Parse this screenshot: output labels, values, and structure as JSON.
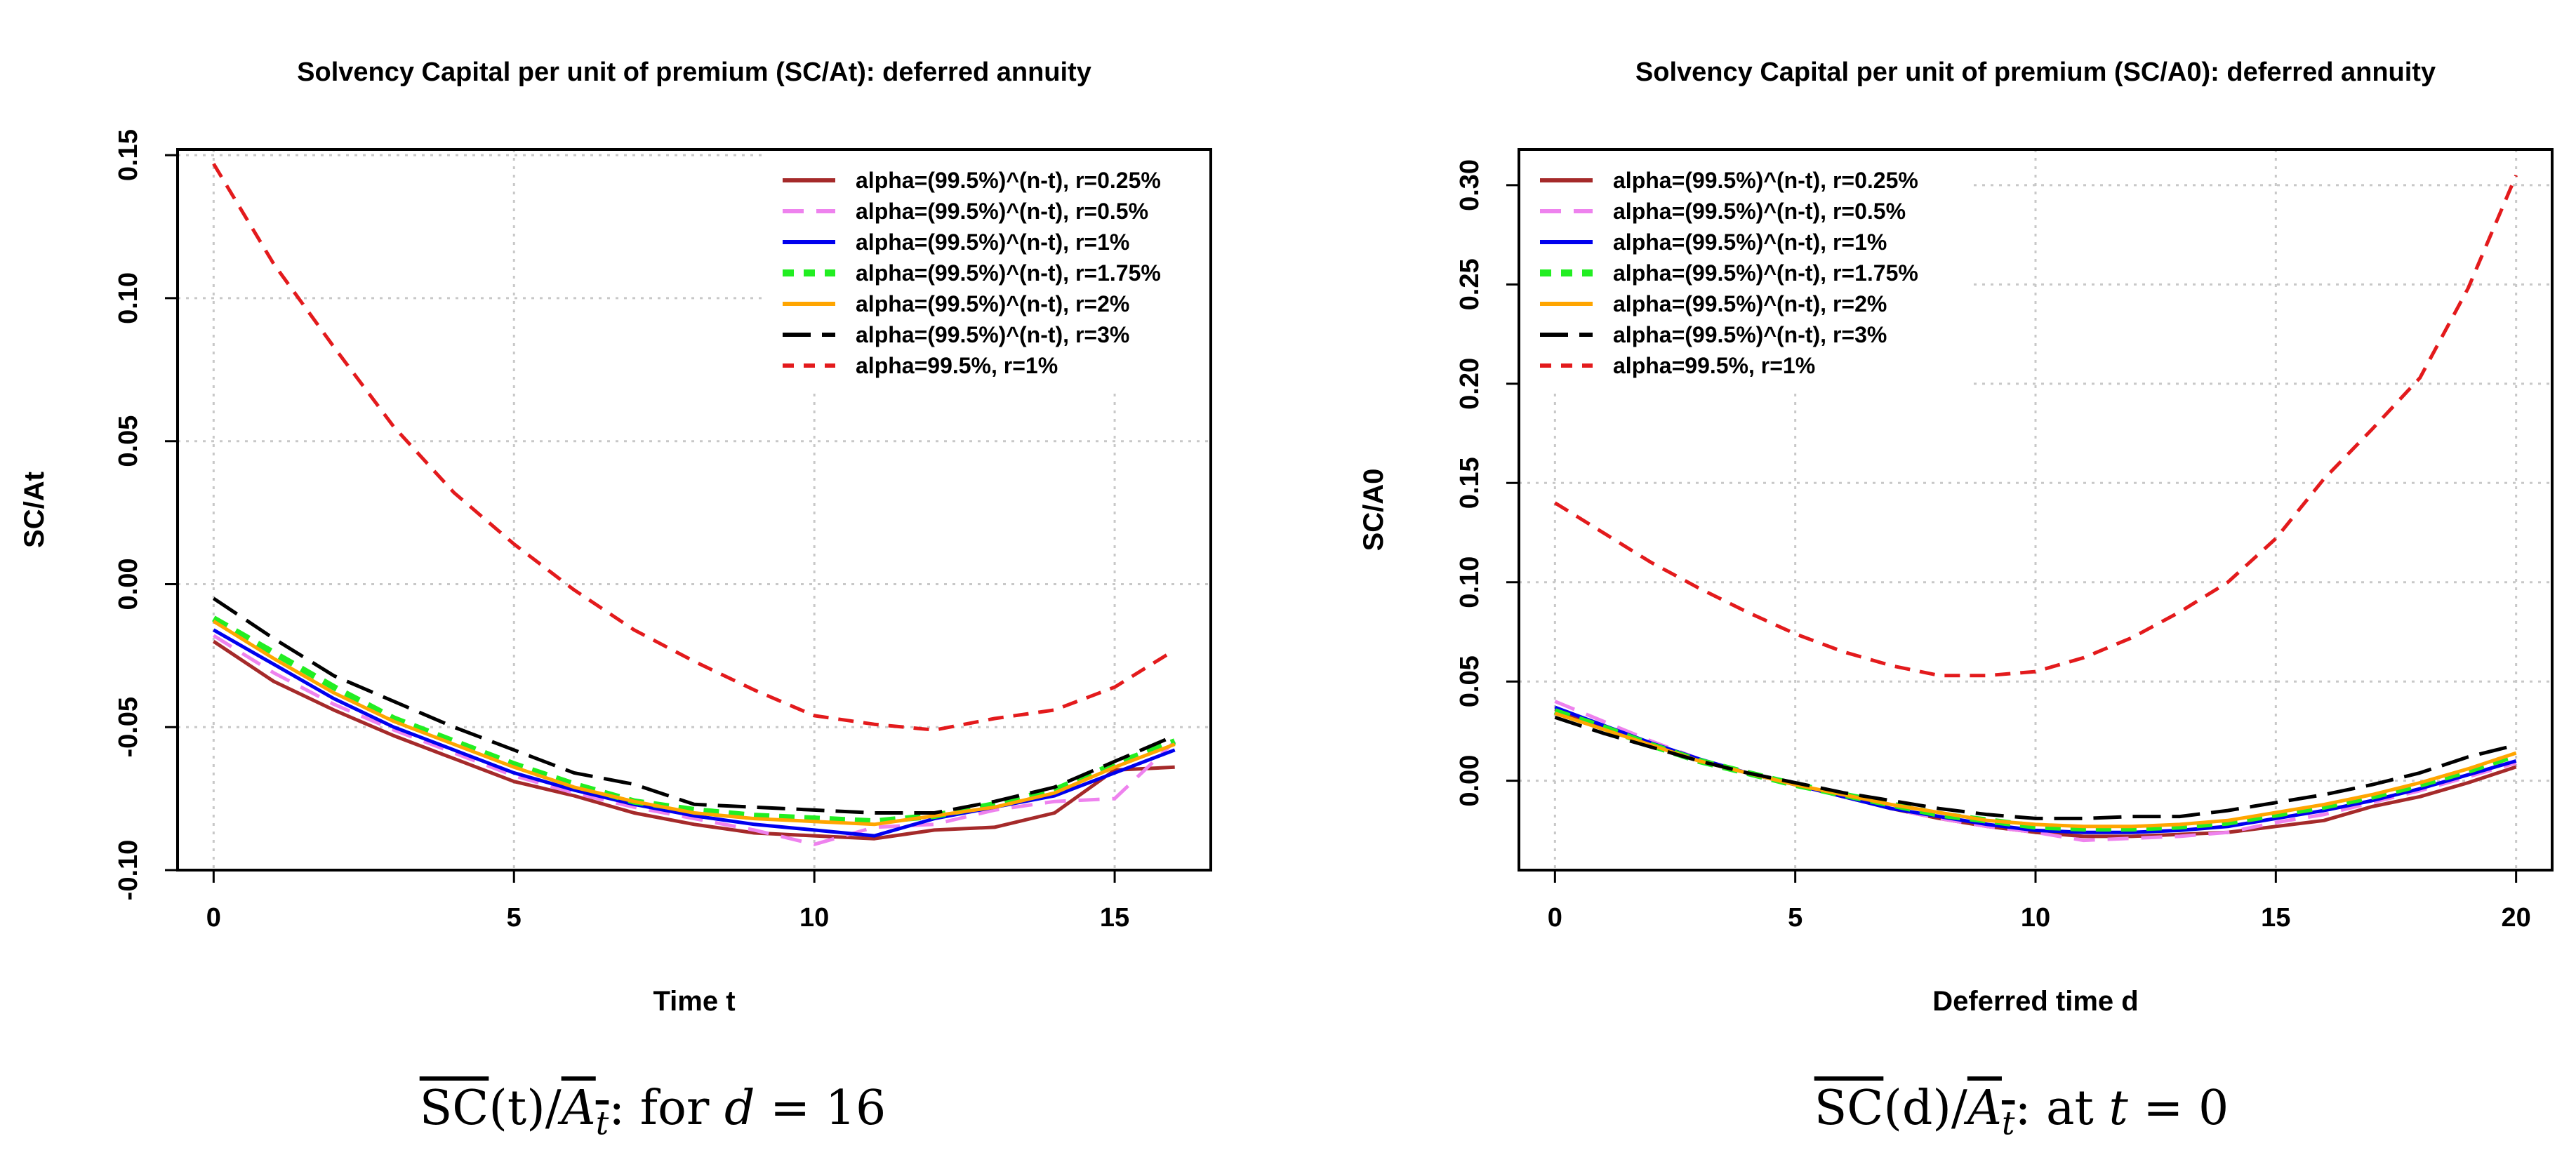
{
  "chart_data": [
    {
      "type": "line",
      "title": "Solvency Capital per unit of premium (SC/At): deferred annuity",
      "xlabel": "Time t",
      "ylabel": "SC/At",
      "xlim": [
        -0.6,
        16.6
      ],
      "ylim": [
        -0.1,
        0.152
      ],
      "xticks": [
        0,
        5,
        10,
        15
      ],
      "xtick_labels": [
        "0",
        "5",
        "10",
        "15"
      ],
      "yticks": [
        -0.1,
        -0.05,
        0.0,
        0.05,
        0.1,
        0.15
      ],
      "ytick_labels": [
        "-0.10",
        "-0.05",
        "0.00",
        "0.05",
        "0.10",
        "0.15"
      ],
      "grid": true,
      "legend_position": "top-right",
      "caption": {
        "prefix": "SC",
        "mid": "(t)/",
        "bar": "A",
        "sub": "t",
        "tail": ": for ",
        "var": "d",
        "eq": " = 16"
      },
      "series": [
        {
          "name": "alpha=(99.5%)^(n-t), r=0.25%",
          "color": "#a52a2a",
          "dash": "solid",
          "width": 5,
          "x": [
            0,
            1,
            2,
            3,
            4,
            5,
            6,
            7,
            8,
            9,
            10,
            11,
            12,
            13,
            14,
            15,
            16
          ],
          "y": [
            -0.02,
            -0.034,
            -0.044,
            -0.053,
            -0.061,
            -0.069,
            -0.074,
            -0.08,
            -0.084,
            -0.087,
            -0.088,
            -0.089,
            -0.086,
            -0.085,
            -0.08,
            -0.065,
            -0.064
          ]
        },
        {
          "name": "alpha=(99.5%)^(n-t), r=0.5%",
          "color": "#ee82ee",
          "dash": "long",
          "width": 5,
          "x": [
            0,
            1,
            2,
            3,
            4,
            5,
            6,
            7,
            8,
            9,
            10,
            11,
            12,
            13,
            14,
            15,
            16
          ],
          "y": [
            -0.018,
            -0.031,
            -0.042,
            -0.051,
            -0.059,
            -0.067,
            -0.073,
            -0.078,
            -0.082,
            -0.086,
            -0.091,
            -0.085,
            -0.084,
            -0.079,
            -0.076,
            -0.075,
            -0.055
          ]
        },
        {
          "name": "alpha=(99.5%)^(n-t), r=1%",
          "color": "#0000ee",
          "dash": "solid",
          "width": 5,
          "x": [
            0,
            1,
            2,
            3,
            4,
            5,
            6,
            7,
            8,
            9,
            10,
            11,
            12,
            13,
            14,
            15,
            16
          ],
          "y": [
            -0.016,
            -0.028,
            -0.04,
            -0.05,
            -0.058,
            -0.066,
            -0.072,
            -0.077,
            -0.081,
            -0.084,
            -0.086,
            -0.088,
            -0.082,
            -0.078,
            -0.074,
            -0.066,
            -0.058
          ]
        },
        {
          "name": "alpha=(99.5%)^(n-t), r=1.75%",
          "color": "#22ee22",
          "dash": "dash",
          "width": 9,
          "x": [
            0,
            1,
            2,
            3,
            4,
            5,
            6,
            7,
            8,
            9,
            10,
            11,
            12,
            13,
            14,
            15,
            16
          ],
          "y": [
            -0.012,
            -0.024,
            -0.036,
            -0.047,
            -0.055,
            -0.063,
            -0.07,
            -0.076,
            -0.079,
            -0.081,
            -0.082,
            -0.083,
            -0.081,
            -0.077,
            -0.072,
            -0.063,
            -0.055
          ]
        },
        {
          "name": "alpha=(99.5%)^(n-t), r=2%",
          "color": "#ffa500",
          "dash": "solid",
          "width": 5,
          "x": [
            0,
            1,
            2,
            3,
            4,
            5,
            6,
            7,
            8,
            9,
            10,
            11,
            12,
            13,
            14,
            15,
            16
          ],
          "y": [
            -0.013,
            -0.026,
            -0.038,
            -0.048,
            -0.056,
            -0.064,
            -0.071,
            -0.076,
            -0.08,
            -0.082,
            -0.083,
            -0.084,
            -0.081,
            -0.078,
            -0.073,
            -0.064,
            -0.056
          ]
        },
        {
          "name": "alpha=(99.5%)^(n-t), r=3%",
          "color": "#000000",
          "dash": "longdash",
          "width": 5,
          "x": [
            0,
            1,
            2,
            3,
            4,
            5,
            6,
            7,
            8,
            9,
            10,
            11,
            12,
            13,
            14,
            15,
            16
          ],
          "y": [
            -0.005,
            -0.019,
            -0.032,
            -0.041,
            -0.05,
            -0.058,
            -0.066,
            -0.07,
            -0.077,
            -0.078,
            -0.079,
            -0.08,
            -0.08,
            -0.076,
            -0.071,
            -0.062,
            -0.053
          ]
        },
        {
          "name": "alpha=99.5%, r=1%",
          "color": "#e31a1c",
          "dash": "dash",
          "width": 5,
          "x": [
            0,
            1,
            2,
            3,
            4,
            5,
            6,
            7,
            8,
            9,
            10,
            11,
            12,
            13,
            14,
            15,
            16
          ],
          "y": [
            0.147,
            0.112,
            0.083,
            0.055,
            0.032,
            0.014,
            -0.002,
            -0.016,
            -0.027,
            -0.037,
            -0.046,
            -0.049,
            -0.051,
            -0.047,
            -0.044,
            -0.036,
            -0.023
          ]
        }
      ]
    },
    {
      "type": "line",
      "title": "Solvency Capital per unit of premium (SC/A0): deferred annuity",
      "xlabel": "Deferred time d",
      "ylabel": "SC/A0",
      "xlim": [
        -0.75,
        20.75
      ],
      "ylim": [
        -0.045,
        0.318
      ],
      "xticks": [
        0,
        5,
        10,
        15,
        20
      ],
      "xtick_labels": [
        "0",
        "5",
        "10",
        "15",
        "20"
      ],
      "yticks": [
        0.0,
        0.05,
        0.1,
        0.15,
        0.2,
        0.25,
        0.3
      ],
      "ytick_labels": [
        "0.00",
        "0.05",
        "0.10",
        "0.15",
        "0.20",
        "0.25",
        "0.30"
      ],
      "grid": true,
      "legend_position": "top-left",
      "caption": {
        "prefix": "SC",
        "mid": "(d)/",
        "bar": "A",
        "sub": "t",
        "tail": ": at ",
        "var": "t",
        "eq": " = 0"
      },
      "series": [
        {
          "name": "alpha=(99.5%)^(n-t), r=0.25%",
          "color": "#a52a2a",
          "dash": "solid",
          "width": 5,
          "x": [
            0,
            1,
            2,
            3,
            4,
            5,
            6,
            7,
            8,
            9,
            10,
            11,
            12,
            13,
            14,
            15,
            16,
            17,
            18,
            19,
            20
          ],
          "y": [
            0.036,
            0.027,
            0.018,
            0.01,
            0.004,
            -0.002,
            -0.008,
            -0.014,
            -0.019,
            -0.023,
            -0.026,
            -0.028,
            -0.028,
            -0.027,
            -0.026,
            -0.023,
            -0.02,
            -0.013,
            -0.008,
            -0.001,
            0.007
          ]
        },
        {
          "name": "alpha=(99.5%)^(n-t), r=0.5%",
          "color": "#ee82ee",
          "dash": "long",
          "width": 5,
          "x": [
            0,
            1,
            2,
            3,
            4,
            5,
            6,
            7,
            8,
            9,
            10,
            11,
            12,
            13,
            14,
            15,
            16,
            17,
            18,
            19,
            20
          ],
          "y": [
            0.04,
            0.03,
            0.02,
            0.011,
            0.004,
            -0.002,
            -0.008,
            -0.014,
            -0.019,
            -0.023,
            -0.026,
            -0.03,
            -0.029,
            -0.028,
            -0.026,
            -0.021,
            -0.017,
            -0.011,
            -0.005,
            0.002,
            0.009
          ]
        },
        {
          "name": "alpha=(99.5%)^(n-t), r=1%",
          "color": "#0000ee",
          "dash": "solid",
          "width": 5,
          "x": [
            0,
            1,
            2,
            3,
            4,
            5,
            6,
            7,
            8,
            9,
            10,
            11,
            12,
            13,
            14,
            15,
            16,
            17,
            18,
            19,
            20
          ],
          "y": [
            0.037,
            0.028,
            0.019,
            0.011,
            0.004,
            -0.002,
            -0.008,
            -0.014,
            -0.018,
            -0.022,
            -0.025,
            -0.026,
            -0.026,
            -0.025,
            -0.023,
            -0.019,
            -0.015,
            -0.01,
            -0.004,
            0.003,
            0.01
          ]
        },
        {
          "name": "alpha=(99.5%)^(n-t), r=1.75%",
          "color": "#22ee22",
          "dash": "dash",
          "width": 9,
          "x": [
            0,
            1,
            2,
            3,
            4,
            5,
            6,
            7,
            8,
            9,
            10,
            11,
            12,
            13,
            14,
            15,
            16,
            17,
            18,
            19,
            20
          ],
          "y": [
            0.035,
            0.027,
            0.018,
            0.01,
            0.004,
            -0.002,
            -0.007,
            -0.012,
            -0.017,
            -0.02,
            -0.023,
            -0.024,
            -0.024,
            -0.023,
            -0.021,
            -0.017,
            -0.013,
            -0.008,
            -0.002,
            0.005,
            0.013
          ]
        },
        {
          "name": "alpha=(99.5%)^(n-t), r=2%",
          "color": "#ffa500",
          "dash": "solid",
          "width": 5,
          "x": [
            0,
            1,
            2,
            3,
            4,
            5,
            6,
            7,
            8,
            9,
            10,
            11,
            12,
            13,
            14,
            15,
            16,
            17,
            18,
            19,
            20
          ],
          "y": [
            0.034,
            0.026,
            0.018,
            0.01,
            0.004,
            -0.002,
            -0.007,
            -0.012,
            -0.016,
            -0.02,
            -0.022,
            -0.023,
            -0.023,
            -0.022,
            -0.02,
            -0.016,
            -0.012,
            -0.007,
            -0.001,
            0.006,
            0.014
          ]
        },
        {
          "name": "alpha=(99.5%)^(n-t), r=3%",
          "color": "#000000",
          "dash": "longdash",
          "width": 5,
          "x": [
            0,
            1,
            2,
            3,
            4,
            5,
            6,
            7,
            8,
            9,
            10,
            11,
            12,
            13,
            14,
            15,
            16,
            17,
            18,
            19,
            20
          ],
          "y": [
            0.032,
            0.024,
            0.017,
            0.01,
            0.004,
            -0.001,
            -0.006,
            -0.01,
            -0.014,
            -0.017,
            -0.019,
            -0.019,
            -0.018,
            -0.018,
            -0.015,
            -0.011,
            -0.007,
            -0.002,
            0.004,
            0.012,
            0.018
          ]
        },
        {
          "name": "alpha=99.5%, r=1%",
          "color": "#e31a1c",
          "dash": "dash",
          "width": 5,
          "x": [
            0,
            1,
            2,
            3,
            4,
            5,
            6,
            7,
            8,
            9,
            10,
            11,
            12,
            13,
            14,
            15,
            16,
            17,
            18,
            19,
            20
          ],
          "y": [
            0.14,
            0.125,
            0.11,
            0.097,
            0.085,
            0.074,
            0.065,
            0.058,
            0.053,
            0.053,
            0.055,
            0.062,
            0.072,
            0.085,
            0.1,
            0.122,
            0.152,
            0.177,
            0.203,
            0.248,
            0.305
          ]
        }
      ]
    }
  ]
}
